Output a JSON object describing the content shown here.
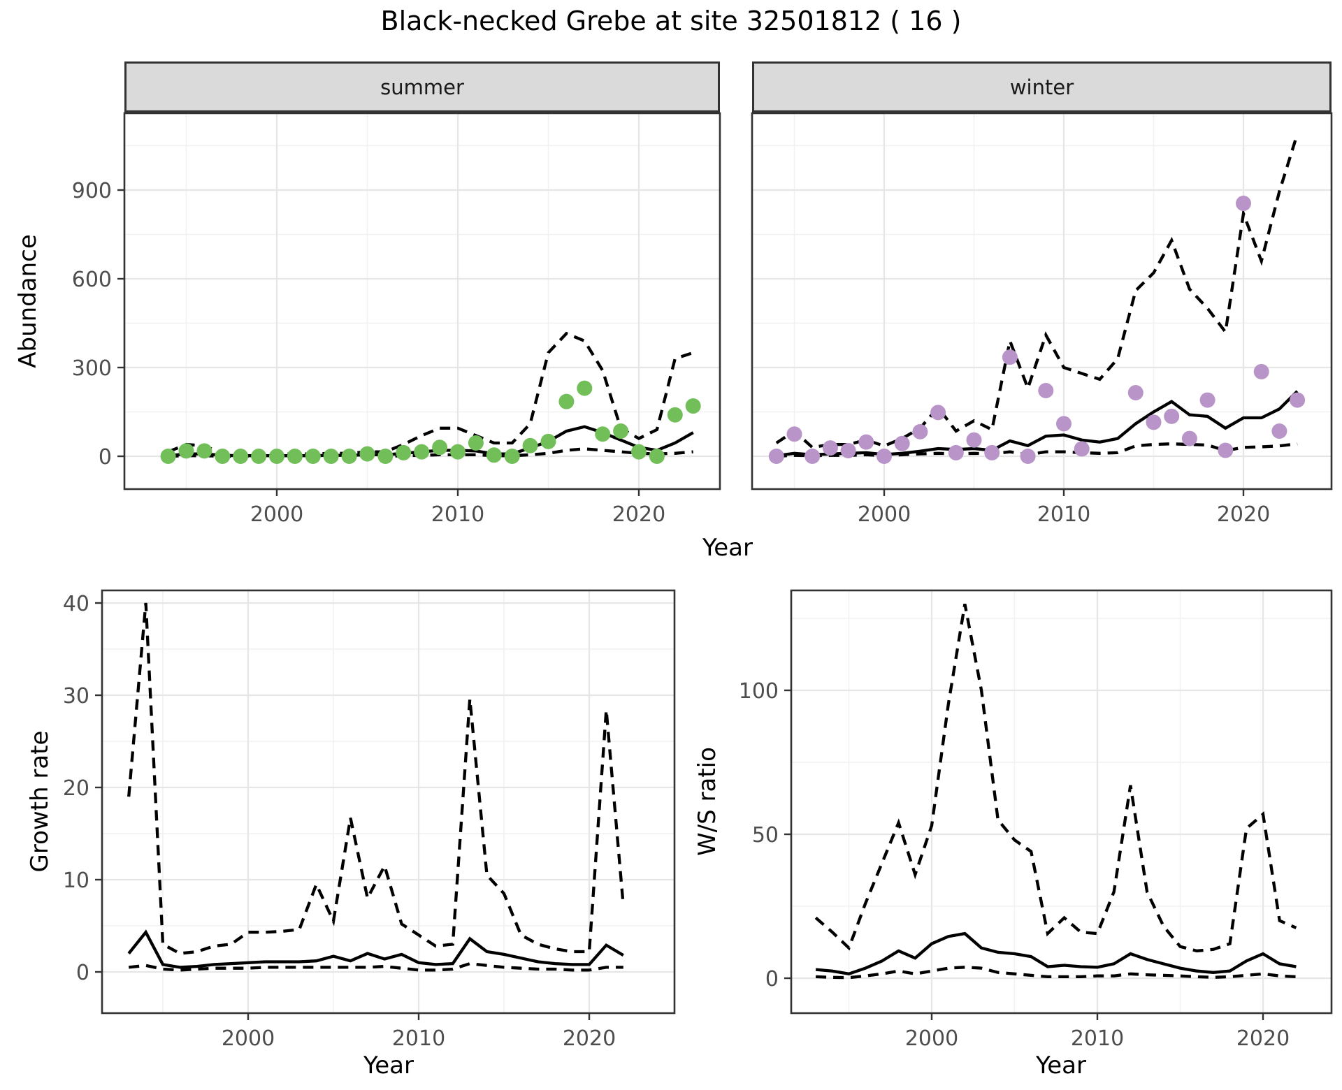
{
  "title": "Black-necked Grebe at site 32501812 ( 16 )",
  "facets": {
    "summer_label": "summer",
    "winter_label": "winter"
  },
  "axis_titles": {
    "abundance": "Abundance",
    "year_top": "Year",
    "growth_rate": "Growth rate",
    "year_growth": "Year",
    "ws_ratio": "W/S ratio",
    "year_ws": "Year"
  },
  "colors": {
    "summer_points": "#72BF5A",
    "winter_points": "#B894C8",
    "line": "#000000",
    "strip_bg": "#DADADA",
    "grid_major": "#E6E6E6",
    "grid_minor": "#F1F1F1",
    "tick_text": "#4D4D4D",
    "panel_border": "#333333"
  },
  "chart_data": [
    {
      "id": "abundance_summer",
      "type": "line",
      "facet": "summer",
      "xlabel": "Year",
      "ylabel": "Abundance",
      "xticks": [
        2000,
        2010,
        2020
      ],
      "yticks": [
        0,
        300,
        600,
        900
      ],
      "x_minor": [
        1995,
        2005,
        2015
      ],
      "y_minor": [
        150,
        450,
        750,
        1050
      ],
      "ylim": [
        -55,
        1160
      ],
      "show_ytick_labels": true,
      "x": [
        1994,
        1995,
        1996,
        1997,
        1998,
        1999,
        2000,
        2001,
        2002,
        2003,
        2004,
        2005,
        2006,
        2007,
        2008,
        2009,
        2010,
        2011,
        2012,
        2013,
        2014,
        2015,
        2016,
        2017,
        2018,
        2019,
        2020,
        2021,
        2022,
        2023
      ],
      "series": [
        {
          "name": "upper_95ci",
          "style": "dashed",
          "values": [
            15,
            40,
            35,
            10,
            8,
            8,
            8,
            8,
            8,
            10,
            10,
            15,
            15,
            40,
            70,
            95,
            95,
            70,
            45,
            45,
            110,
            350,
            415,
            390,
            290,
            95,
            60,
            90,
            330,
            350
          ]
        },
        {
          "name": "lower_95ci",
          "style": "dashed",
          "values": [
            0,
            2,
            2,
            0,
            0,
            0,
            0,
            0,
            0,
            0,
            0,
            0,
            0,
            2,
            3,
            5,
            5,
            5,
            2,
            2,
            5,
            10,
            20,
            25,
            20,
            15,
            10,
            8,
            10,
            15
          ]
        },
        {
          "name": "mean",
          "style": "solid",
          "values": [
            2,
            8,
            8,
            3,
            2,
            2,
            2,
            2,
            2,
            3,
            3,
            5,
            5,
            10,
            15,
            20,
            20,
            18,
            8,
            8,
            28,
            50,
            85,
            100,
            80,
            55,
            30,
            20,
            45,
            80
          ]
        },
        {
          "name": "observed_counts",
          "style": "points",
          "color": "#72BF5A",
          "values": [
            0,
            18,
            18,
            0,
            0,
            0,
            0,
            0,
            0,
            0,
            0,
            8,
            0,
            12,
            15,
            30,
            15,
            45,
            4,
            0,
            36,
            50,
            185,
            230,
            75,
            85,
            15,
            0,
            140,
            170
          ]
        }
      ]
    },
    {
      "id": "abundance_winter",
      "type": "line",
      "facet": "winter",
      "xlabel": "Year",
      "ylabel": "Abundance",
      "xticks": [
        2000,
        2010,
        2020
      ],
      "yticks": [
        0,
        300,
        600,
        900
      ],
      "x_minor": [
        1995,
        2005,
        2015
      ],
      "y_minor": [
        150,
        450,
        750,
        1050
      ],
      "ylim": [
        -55,
        1160
      ],
      "show_ytick_labels": false,
      "x": [
        1994,
        1995,
        1996,
        1997,
        1998,
        1999,
        2000,
        2001,
        2002,
        2003,
        2004,
        2005,
        2006,
        2007,
        2008,
        2009,
        2010,
        2011,
        2012,
        2013,
        2014,
        2015,
        2016,
        2017,
        2018,
        2019,
        2020,
        2021,
        2022,
        2023
      ],
      "series": [
        {
          "name": "upper_95ci",
          "style": "dashed",
          "values": [
            45,
            85,
            30,
            40,
            40,
            55,
            35,
            60,
            95,
            165,
            85,
            120,
            90,
            390,
            230,
            410,
            300,
            280,
            260,
            330,
            560,
            620,
            730,
            565,
            500,
            420,
            820,
            660,
            895,
            1090
          ]
        },
        {
          "name": "lower_95ci",
          "style": "dashed",
          "values": [
            0,
            3,
            2,
            3,
            3,
            5,
            2,
            5,
            8,
            10,
            8,
            10,
            8,
            15,
            5,
            15,
            15,
            12,
            10,
            12,
            35,
            40,
            42,
            40,
            38,
            19,
            30,
            32,
            35,
            42
          ]
        },
        {
          "name": "mean",
          "style": "solid",
          "values": [
            2,
            10,
            5,
            8,
            10,
            12,
            6,
            10,
            17,
            26,
            23,
            26,
            20,
            52,
            36,
            68,
            72,
            55,
            48,
            60,
            110,
            150,
            185,
            140,
            135,
            95,
            130,
            130,
            160,
            220
          ]
        },
        {
          "name": "observed_counts",
          "style": "points",
          "color": "#B894C8",
          "values": [
            0,
            75,
            0,
            28,
            19,
            48,
            0,
            43,
            83,
            148,
            12,
            55,
            12,
            335,
            0,
            222,
            110,
            25,
            null,
            null,
            215,
            115,
            135,
            60,
            190,
            20,
            855,
            286,
            85,
            190
          ]
        }
      ]
    },
    {
      "id": "growth_rate",
      "type": "line",
      "xlabel": "Year",
      "ylabel": "Growth rate",
      "xticks": [
        2000,
        2010,
        2020
      ],
      "yticks": [
        0,
        10,
        20,
        30,
        40
      ],
      "x_minor": [
        1995,
        2005,
        2015
      ],
      "y_minor": [
        5,
        15,
        25,
        35
      ],
      "ylim": [
        -4.5,
        41.4
      ],
      "show_ytick_labels": true,
      "x": [
        1993,
        1994,
        1995,
        1996,
        1997,
        1998,
        1999,
        2000,
        2001,
        2002,
        2003,
        2004,
        2005,
        2006,
        2007,
        2008,
        2009,
        2010,
        2011,
        2012,
        2013,
        2014,
        2015,
        2016,
        2017,
        2018,
        2019,
        2020,
        2021,
        2022
      ],
      "series": [
        {
          "name": "upper_95ci",
          "style": "dashed",
          "values": [
            19,
            40,
            3,
            2,
            2.2,
            2.8,
            3,
            4.3,
            4.3,
            4.4,
            4.6,
            9.5,
            5.5,
            16.7,
            8,
            11.5,
            5.2,
            4,
            2.8,
            3,
            29.6,
            10.5,
            8.5,
            4,
            3,
            2.5,
            2.2,
            2.2,
            28.4,
            7.2
          ]
        },
        {
          "name": "lower_95ci",
          "style": "dashed",
          "values": [
            0.5,
            0.7,
            0.3,
            0.2,
            0.3,
            0.4,
            0.4,
            0.4,
            0.5,
            0.5,
            0.5,
            0.5,
            0.5,
            0.5,
            0.5,
            0.6,
            0.4,
            0.2,
            0.2,
            0.3,
            0.9,
            0.7,
            0.5,
            0.4,
            0.3,
            0.3,
            0.2,
            0.2,
            0.5,
            0.5
          ]
        },
        {
          "name": "mean",
          "style": "solid",
          "values": [
            2,
            4.3,
            0.8,
            0.5,
            0.6,
            0.8,
            0.9,
            1,
            1.1,
            1.1,
            1.1,
            1.2,
            1.7,
            1.2,
            2,
            1.4,
            1.9,
            1,
            0.8,
            0.9,
            3.6,
            2.2,
            1.9,
            1.5,
            1.1,
            0.9,
            0.8,
            0.8,
            2.9,
            1.8
          ]
        }
      ]
    },
    {
      "id": "ws_ratio",
      "type": "line",
      "xlabel": "Year",
      "ylabel": "W/S ratio",
      "xticks": [
        2000,
        2010,
        2020
      ],
      "yticks": [
        0,
        50,
        100
      ],
      "x_minor": [
        1995,
        2005,
        2015
      ],
      "y_minor": [
        25,
        75,
        125
      ],
      "ylim": [
        -12,
        135
      ],
      "show_ytick_labels": true,
      "x": [
        1993,
        1994,
        1995,
        1996,
        1997,
        1998,
        1999,
        2000,
        2001,
        2002,
        2003,
        2004,
        2005,
        2006,
        2007,
        2008,
        2009,
        2010,
        2011,
        2012,
        2013,
        2014,
        2015,
        2016,
        2017,
        2018,
        2019,
        2020,
        2021,
        2022
      ],
      "series": [
        {
          "name": "upper_95ci",
          "style": "dashed",
          "values": [
            21,
            16,
            10.5,
            26,
            40,
            54,
            36,
            53,
            95,
            130,
            100,
            55,
            48,
            44,
            15.5,
            21,
            16,
            15.5,
            30,
            67,
            30,
            18,
            11,
            9.5,
            10,
            12,
            52,
            57,
            20,
            17.5
          ]
        },
        {
          "name": "lower_95ci",
          "style": "dashed",
          "values": [
            0.5,
            0.3,
            0.2,
            0.8,
            1.5,
            2.5,
            1.5,
            2.5,
            3.5,
            3.8,
            3.5,
            2,
            1.5,
            1,
            0.5,
            0.5,
            0.5,
            0.8,
            0.8,
            1.5,
            1.2,
            1,
            0.8,
            0.5,
            0.3,
            0.5,
            1,
            1.5,
            0.8,
            0.5
          ]
        },
        {
          "name": "mean",
          "style": "solid",
          "values": [
            3,
            2.5,
            1.5,
            3.5,
            6,
            9.5,
            7,
            12,
            14.5,
            15.5,
            10.5,
            9,
            8.5,
            7.5,
            4,
            4.5,
            4,
            3.8,
            5,
            8.5,
            6.5,
            5,
            3.5,
            2.5,
            2,
            2.5,
            6,
            8.5,
            5,
            4
          ]
        }
      ]
    }
  ]
}
